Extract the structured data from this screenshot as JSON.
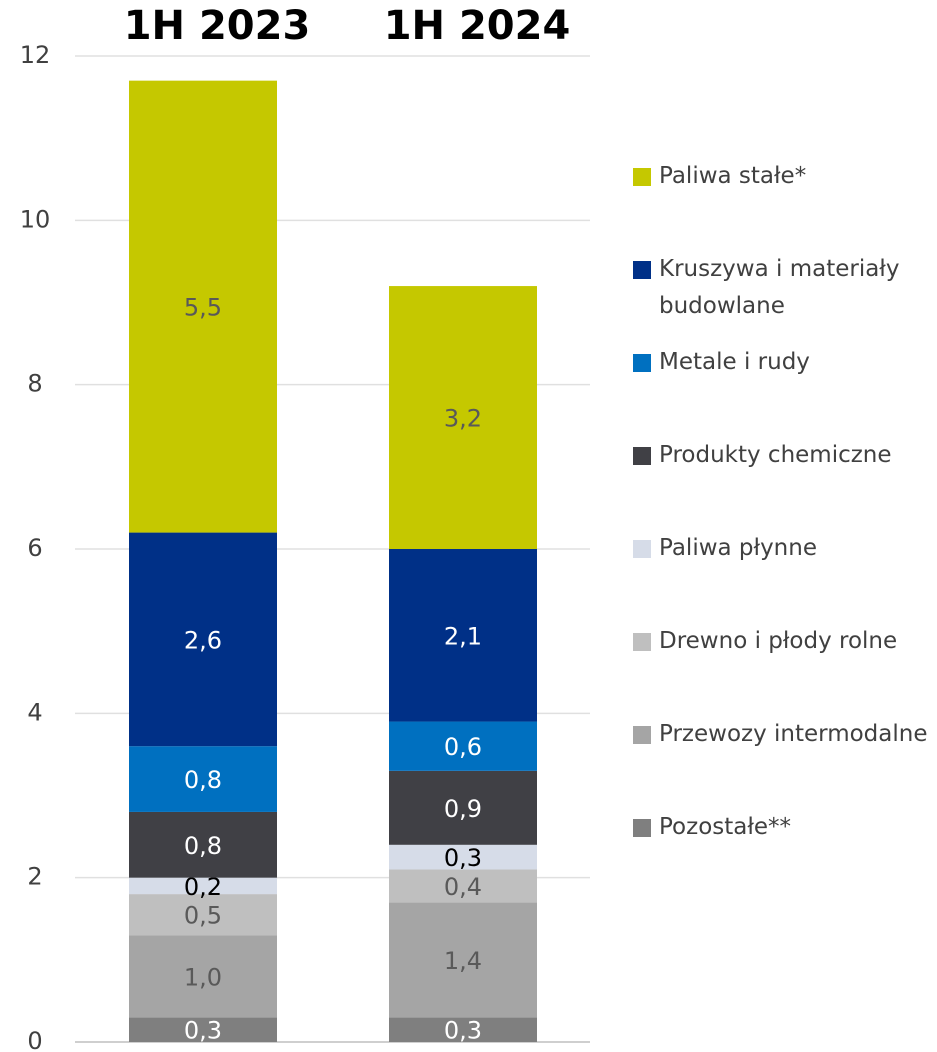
{
  "chart_data": {
    "type": "stacked-bar",
    "categories": [
      "1H 2023",
      "1H 2024"
    ],
    "ylim": [
      0,
      12
    ],
    "yticks": [
      0,
      2,
      4,
      6,
      8,
      10,
      12
    ],
    "grid": true,
    "legend": "right",
    "series": [
      {
        "name": "Pozostałe**",
        "color": "#7f7f7f",
        "values": [
          0.3,
          0.3
        ],
        "value_labels": [
          "0,3",
          "0,3"
        ]
      },
      {
        "name": "Przewozy intermodalne",
        "color": "#a5a5a5",
        "values": [
          1.0,
          1.4
        ],
        "value_labels": [
          "1,0",
          "1,4"
        ]
      },
      {
        "name": "Drewno i płody rolne",
        "color": "#bfbfbf",
        "values": [
          0.5,
          0.4
        ],
        "value_labels": [
          "0,5",
          "0,4"
        ]
      },
      {
        "name": "Paliwa płynne",
        "color": "#d6dce8",
        "values": [
          0.2,
          0.3
        ],
        "value_labels": [
          "0,2",
          "0,3"
        ]
      },
      {
        "name": "Produkty chemiczne",
        "color": "#404045",
        "values": [
          0.8,
          0.9
        ],
        "value_labels": [
          "0,8",
          "0,9"
        ]
      },
      {
        "name": "Metale i rudy",
        "color": "#0070c0",
        "values": [
          0.8,
          0.6
        ],
        "value_labels": [
          "0,8",
          "0,6"
        ]
      },
      {
        "name": "Kruszywa i materiały budowlane",
        "color": "#003087",
        "values": [
          2.6,
          2.1
        ],
        "value_labels": [
          "2,6",
          "2,1"
        ]
      },
      {
        "name": "Paliwa stałe*",
        "color": "#c5c800",
        "values": [
          5.5,
          3.2
        ],
        "value_labels": [
          "5,5",
          "3,2"
        ]
      }
    ]
  }
}
